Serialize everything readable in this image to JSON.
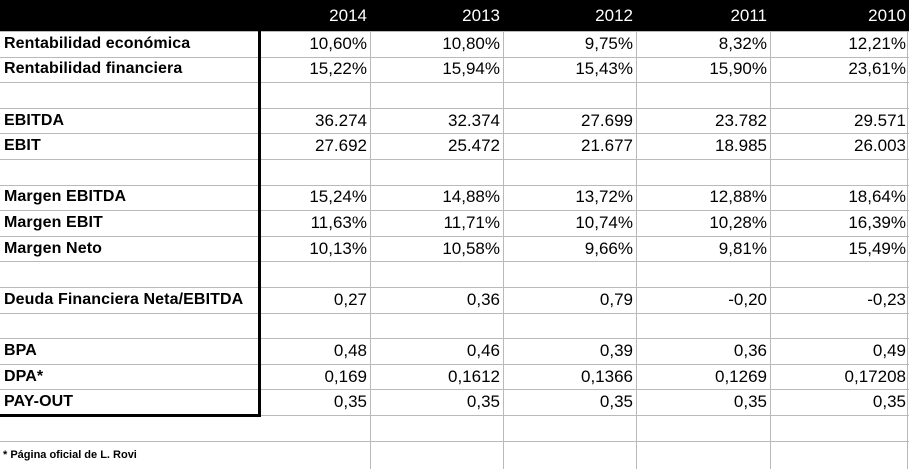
{
  "table": {
    "years": [
      "2014",
      "2013",
      "2012",
      "2011",
      "2010"
    ],
    "rows": [
      {
        "label": "Rentabilidad económica",
        "values": [
          "10,60%",
          "10,80%",
          "9,75%",
          "8,32%",
          "12,21%"
        ]
      },
      {
        "label": "Rentabilidad financiera",
        "values": [
          "15,22%",
          "15,94%",
          "15,43%",
          "15,90%",
          "23,61%"
        ]
      },
      {
        "label": "",
        "values": [
          "",
          "",
          "",
          "",
          ""
        ]
      },
      {
        "label": "EBITDA",
        "values": [
          "36.274",
          "32.374",
          "27.699",
          "23.782",
          "29.571"
        ]
      },
      {
        "label": "EBIT",
        "values": [
          "27.692",
          "25.472",
          "21.677",
          "18.985",
          "26.003"
        ]
      },
      {
        "label": "",
        "values": [
          "",
          "",
          "",
          "",
          ""
        ]
      },
      {
        "label": "Margen EBITDA",
        "values": [
          "15,24%",
          "14,88%",
          "13,72%",
          "12,88%",
          "18,64%"
        ]
      },
      {
        "label": "Margen EBIT",
        "values": [
          "11,63%",
          "11,71%",
          "10,74%",
          "10,28%",
          "16,39%"
        ]
      },
      {
        "label": "Margen Neto",
        "values": [
          "10,13%",
          "10,58%",
          "9,66%",
          "9,81%",
          "15,49%"
        ]
      },
      {
        "label": "",
        "values": [
          "",
          "",
          "",
          "",
          ""
        ]
      },
      {
        "label": "Deuda Financiera Neta/EBITDA",
        "values": [
          "0,27",
          "0,36",
          "0,79",
          "-0,20",
          "-0,23"
        ]
      },
      {
        "label": "",
        "values": [
          "",
          "",
          "",
          "",
          ""
        ]
      },
      {
        "label": "BPA",
        "values": [
          "0,48",
          "0,46",
          "0,39",
          "0,36",
          "0,49"
        ]
      },
      {
        "label": "DPA*",
        "values": [
          "0,169",
          "0,1612",
          "0,1366",
          "0,1269",
          "0,17208"
        ]
      },
      {
        "label": "PAY-OUT",
        "values": [
          "0,35",
          "0,35",
          "0,35",
          "0,35",
          "0,35"
        ]
      }
    ],
    "footnote": "* Página oficial de L. Rovi"
  }
}
